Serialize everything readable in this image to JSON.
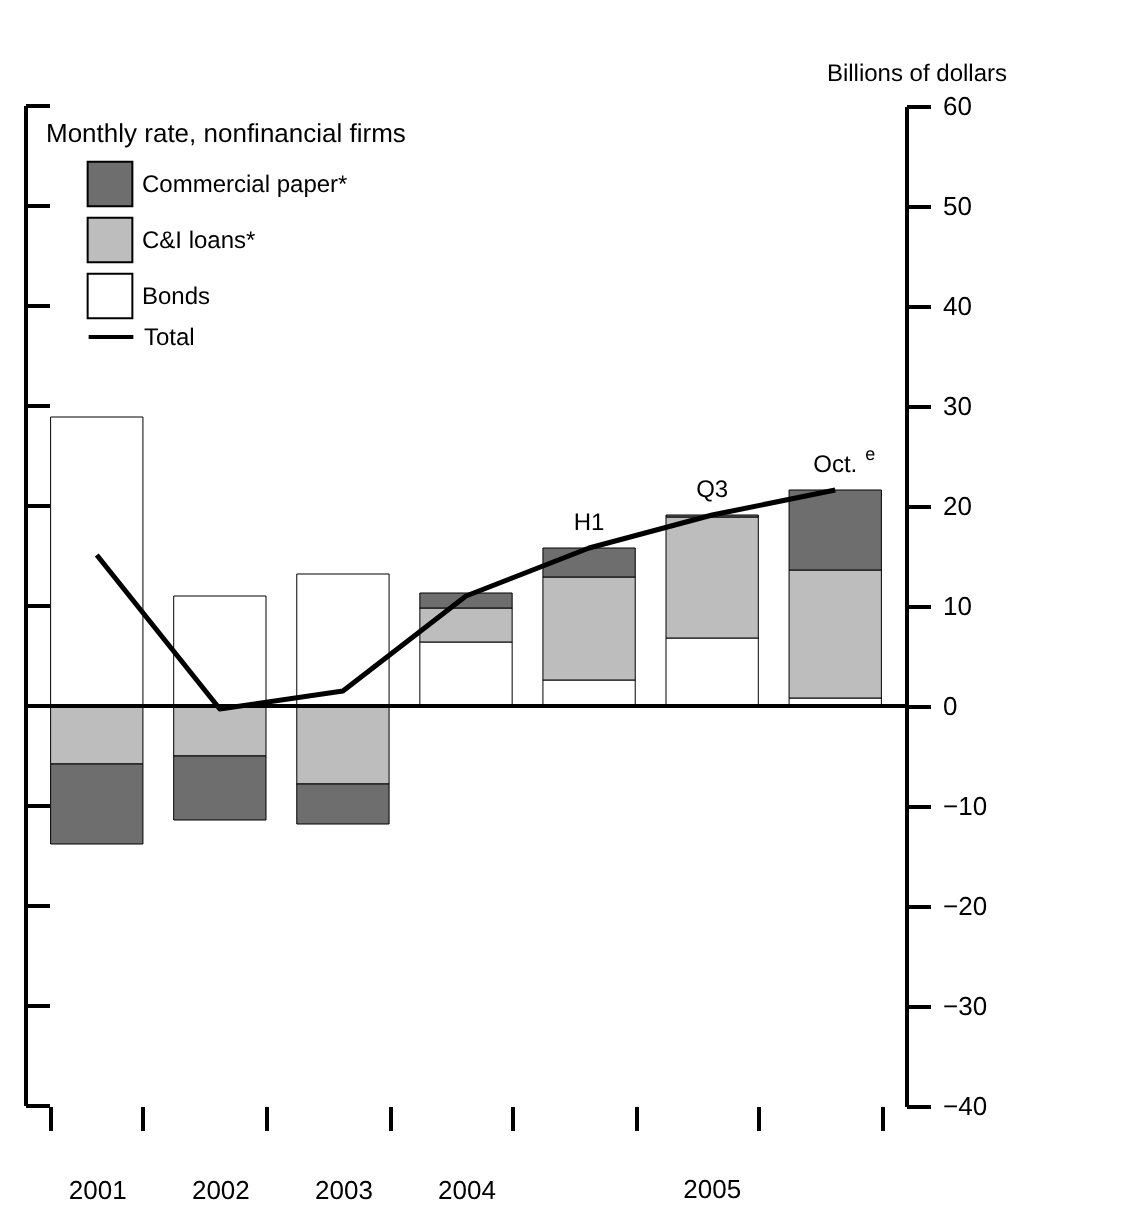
{
  "chart_data": {
    "type": "bar",
    "stacked": true,
    "legend_title": "Monthly rate, nonfinancial firms",
    "ylabel": "Billions of dollars",
    "categories": [
      "2001",
      "2002",
      "2003",
      "2004",
      "H1",
      "Q3",
      "Oct.$^{e}$"
    ],
    "series": [
      {
        "name": "Bonds",
        "color": "#ffffff",
        "values": [
          28.9,
          11.0,
          13.2,
          6.4,
          2.6,
          6.8,
          0.8
        ]
      },
      {
        "name": "C&I loans*",
        "color": "#bdbdbd",
        "values": [
          -5.8,
          -5.0,
          -7.8,
          3.4,
          10.3,
          12.1,
          12.8
        ]
      },
      {
        "name": "Commercial paper*",
        "color": "#6e6e6e",
        "values": [
          -8.0,
          -6.4,
          -4.0,
          1.5,
          2.9,
          0.2,
          8.0
        ]
      },
      {
        "name": "Total",
        "type": "line",
        "color": "#000000",
        "values": [
          15.1,
          -0.3,
          1.5,
          11.0,
          15.8,
          19.1,
          21.6
        ]
      }
    ],
    "ylim": [
      -40,
      60
    ],
    "yticks": [
      -40,
      -30,
      -20,
      -10,
      0,
      10,
      20,
      30,
      40,
      50,
      60
    ],
    "ref_lines": [
      {
        "axis": "y",
        "value": 0,
        "color": "#000000"
      }
    ],
    "annotations": [
      "2005"
    ],
    "grid": false,
    "legend": "top left"
  }
}
